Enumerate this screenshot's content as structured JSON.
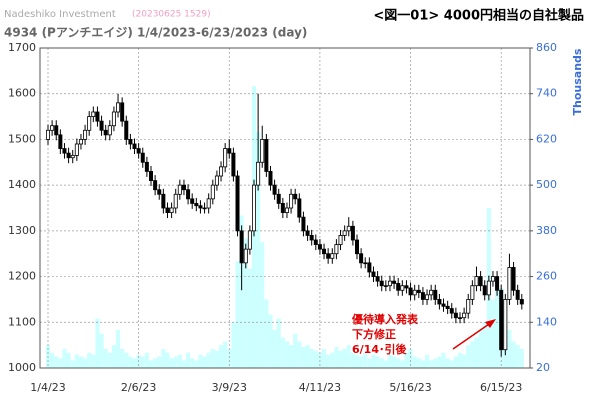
{
  "chart_data": {
    "type": "candlestick",
    "source": "Nadeshiko Investment",
    "timestamp": "(20230625 1529)",
    "title": "<図一01> 4000円相当の自社製品",
    "subtitle": "4934 (Pアンチエイジ) 1/4/2023-6/23/2023 (day)",
    "y2_label": "Thousands",
    "annotation": [
      "優待導入発表",
      "下方修正",
      "6/14･引後"
    ],
    "annotation_color": "#e00000",
    "grid": true,
    "up_color": "#ffffff",
    "down_color": "#000000",
    "categories": [
      "1/4/23",
      null,
      null,
      null,
      null,
      null,
      null,
      null,
      null,
      null,
      null,
      null,
      null,
      null,
      null,
      null,
      null,
      null,
      null,
      null,
      null,
      null,
      "2/6/23",
      null,
      null,
      null,
      null,
      null,
      null,
      null,
      null,
      null,
      null,
      null,
      null,
      null,
      null,
      null,
      null,
      null,
      null,
      null,
      null,
      null,
      "3/9/23",
      null,
      null,
      null,
      null,
      null,
      null,
      null,
      null,
      null,
      null,
      null,
      null,
      null,
      null,
      null,
      null,
      null,
      null,
      null,
      null,
      null,
      "4/11/23",
      null,
      null,
      null,
      null,
      null,
      null,
      null,
      null,
      null,
      null,
      null,
      null,
      null,
      null,
      null,
      null,
      null,
      null,
      null,
      null,
      null,
      "5/16/23",
      null,
      null,
      null,
      null,
      null,
      null,
      null,
      null,
      null,
      null,
      null,
      null,
      null,
      null,
      null,
      null,
      null,
      null,
      null,
      null,
      null,
      "6/15/23",
      null,
      null,
      null,
      null,
      null
    ],
    "open": [
      1500,
      1520,
      1530,
      1510,
      1480,
      1470,
      1460,
      1465,
      1490,
      1500,
      1520,
      1550,
      1560,
      1540,
      1520,
      1510,
      1530,
      1560,
      1580,
      1540,
      1500,
      1490,
      1480,
      1470,
      1450,
      1430,
      1410,
      1390,
      1380,
      1350,
      1340,
      1350,
      1380,
      1400,
      1390,
      1370,
      1360,
      1355,
      1350,
      1350,
      1370,
      1400,
      1420,
      1440,
      1480,
      1470,
      1420,
      1300,
      1230,
      1260,
      1300,
      1400,
      1450,
      1500,
      1430,
      1400,
      1380,
      1360,
      1340,
      1350,
      1380,
      1370,
      1330,
      1300,
      1290,
      1280,
      1270,
      1260,
      1250,
      1240,
      1250,
      1270,
      1290,
      1300,
      1310,
      1280,
      1250,
      1230,
      1230,
      1210,
      1200,
      1190,
      1180,
      1180,
      1190,
      1185,
      1170,
      1180,
      1175,
      1160,
      1170,
      1165,
      1150,
      1160,
      1170,
      1150,
      1140,
      1135,
      1130,
      1120,
      1110,
      1110,
      1120,
      1150,
      1180,
      1200,
      1180,
      1160,
      1190,
      1200,
      1170,
      1040,
      1150,
      1220,
      1170,
      1150
    ],
    "high": [
      1532,
      1542,
      1542,
      1522,
      1492,
      1482,
      1477,
      1502,
      1512,
      1532,
      1562,
      1572,
      1572,
      1552,
      1532,
      1542,
      1572,
      1600,
      1592,
      1552,
      1512,
      1502,
      1492,
      1482,
      1462,
      1442,
      1422,
      1402,
      1392,
      1362,
      1362,
      1392,
      1412,
      1412,
      1402,
      1382,
      1372,
      1367,
      1362,
      1382,
      1412,
      1432,
      1452,
      1492,
      1500,
      1482,
      1432,
      1312,
      1272,
      1312,
      1412,
      1600,
      1530,
      1512,
      1442,
      1412,
      1392,
      1372,
      1362,
      1392,
      1392,
      1382,
      1342,
      1312,
      1302,
      1292,
      1282,
      1272,
      1262,
      1262,
      1282,
      1302,
      1312,
      1330,
      1322,
      1292,
      1262,
      1242,
      1242,
      1222,
      1212,
      1202,
      1192,
      1202,
      1202,
      1197,
      1192,
      1192,
      1187,
      1182,
      1182,
      1177,
      1172,
      1182,
      1182,
      1162,
      1152,
      1147,
      1142,
      1132,
      1122,
      1132,
      1162,
      1192,
      1222,
      1212,
      1192,
      1202,
      1212,
      1212,
      1182,
      1162,
      1250,
      1232,
      1182,
      1162
    ],
    "low": [
      1488,
      1508,
      1498,
      1468,
      1458,
      1448,
      1448,
      1453,
      1478,
      1488,
      1508,
      1538,
      1528,
      1508,
      1498,
      1498,
      1518,
      1548,
      1528,
      1488,
      1478,
      1468,
      1458,
      1438,
      1418,
      1398,
      1378,
      1368,
      1338,
      1328,
      1328,
      1338,
      1368,
      1378,
      1358,
      1348,
      1343,
      1338,
      1338,
      1338,
      1358,
      1388,
      1408,
      1428,
      1458,
      1408,
      1288,
      1170,
      1218,
      1248,
      1288,
      1388,
      1438,
      1418,
      1388,
      1368,
      1348,
      1328,
      1328,
      1338,
      1358,
      1318,
      1288,
      1278,
      1268,
      1258,
      1248,
      1238,
      1228,
      1228,
      1238,
      1258,
      1278,
      1288,
      1268,
      1238,
      1218,
      1218,
      1198,
      1188,
      1178,
      1168,
      1168,
      1168,
      1173,
      1158,
      1158,
      1163,
      1148,
      1148,
      1153,
      1138,
      1138,
      1148,
      1138,
      1128,
      1123,
      1118,
      1108,
      1098,
      1098,
      1098,
      1108,
      1138,
      1168,
      1168,
      1148,
      1148,
      1178,
      1158,
      1025,
      1028,
      1138,
      1158,
      1138,
      1128
    ],
    "close": [
      1520,
      1530,
      1510,
      1480,
      1470,
      1460,
      1465,
      1490,
      1500,
      1520,
      1550,
      1560,
      1540,
      1520,
      1510,
      1530,
      1560,
      1580,
      1540,
      1500,
      1490,
      1480,
      1470,
      1450,
      1430,
      1410,
      1390,
      1380,
      1350,
      1340,
      1350,
      1380,
      1400,
      1390,
      1370,
      1360,
      1355,
      1350,
      1350,
      1370,
      1400,
      1420,
      1440,
      1480,
      1470,
      1420,
      1300,
      1230,
      1260,
      1300,
      1400,
      1450,
      1500,
      1430,
      1400,
      1380,
      1360,
      1340,
      1350,
      1380,
      1370,
      1330,
      1300,
      1290,
      1280,
      1270,
      1260,
      1250,
      1240,
      1250,
      1270,
      1290,
      1300,
      1310,
      1280,
      1250,
      1230,
      1230,
      1210,
      1200,
      1190,
      1180,
      1180,
      1190,
      1185,
      1170,
      1180,
      1175,
      1160,
      1170,
      1165,
      1150,
      1160,
      1170,
      1150,
      1140,
      1135,
      1130,
      1120,
      1110,
      1110,
      1120,
      1150,
      1180,
      1200,
      1180,
      1160,
      1190,
      1200,
      1170,
      1040,
      1150,
      1220,
      1170,
      1150,
      1140
    ],
    "series": [
      {
        "color": "#ccffff",
        "axis": "y2",
        "values": [
          80,
          60,
          50,
          45,
          70,
          60,
          40,
          55,
          50,
          45,
          60,
          55,
          150,
          110,
          70,
          60,
          80,
          120,
          70,
          60,
          50,
          45,
          55,
          50,
          60,
          40,
          45,
          50,
          70,
          60,
          45,
          50,
          55,
          40,
          60,
          45,
          40,
          55,
          50,
          60,
          70,
          65,
          80,
          90,
          70,
          140,
          300,
          420,
          360,
          280,
          760,
          640,
          350,
          200,
          160,
          120,
          150,
          100,
          90,
          80,
          110,
          90,
          75,
          80,
          70,
          65,
          60,
          70,
          55,
          60,
          75,
          65,
          70,
          80,
          60,
          55,
          50,
          60,
          45,
          55,
          50,
          45,
          40,
          55,
          50,
          45,
          40,
          60,
          70,
          50,
          45,
          40,
          55,
          40,
          45,
          50,
          60,
          45,
          40,
          50,
          60,
          55,
          80,
          90,
          100,
          120,
          140,
          440,
          200,
          260,
          230,
          180,
          120,
          90,
          80,
          70
        ]
      }
    ],
    "ylim": [
      1000,
      1700
    ],
    "yticks": [
      1000,
      1100,
      1200,
      1300,
      1400,
      1500,
      1600,
      1700
    ],
    "y2lim": [
      20,
      860
    ],
    "y2ticks": [
      20,
      140,
      260,
      380,
      500,
      620,
      740,
      860
    ]
  }
}
